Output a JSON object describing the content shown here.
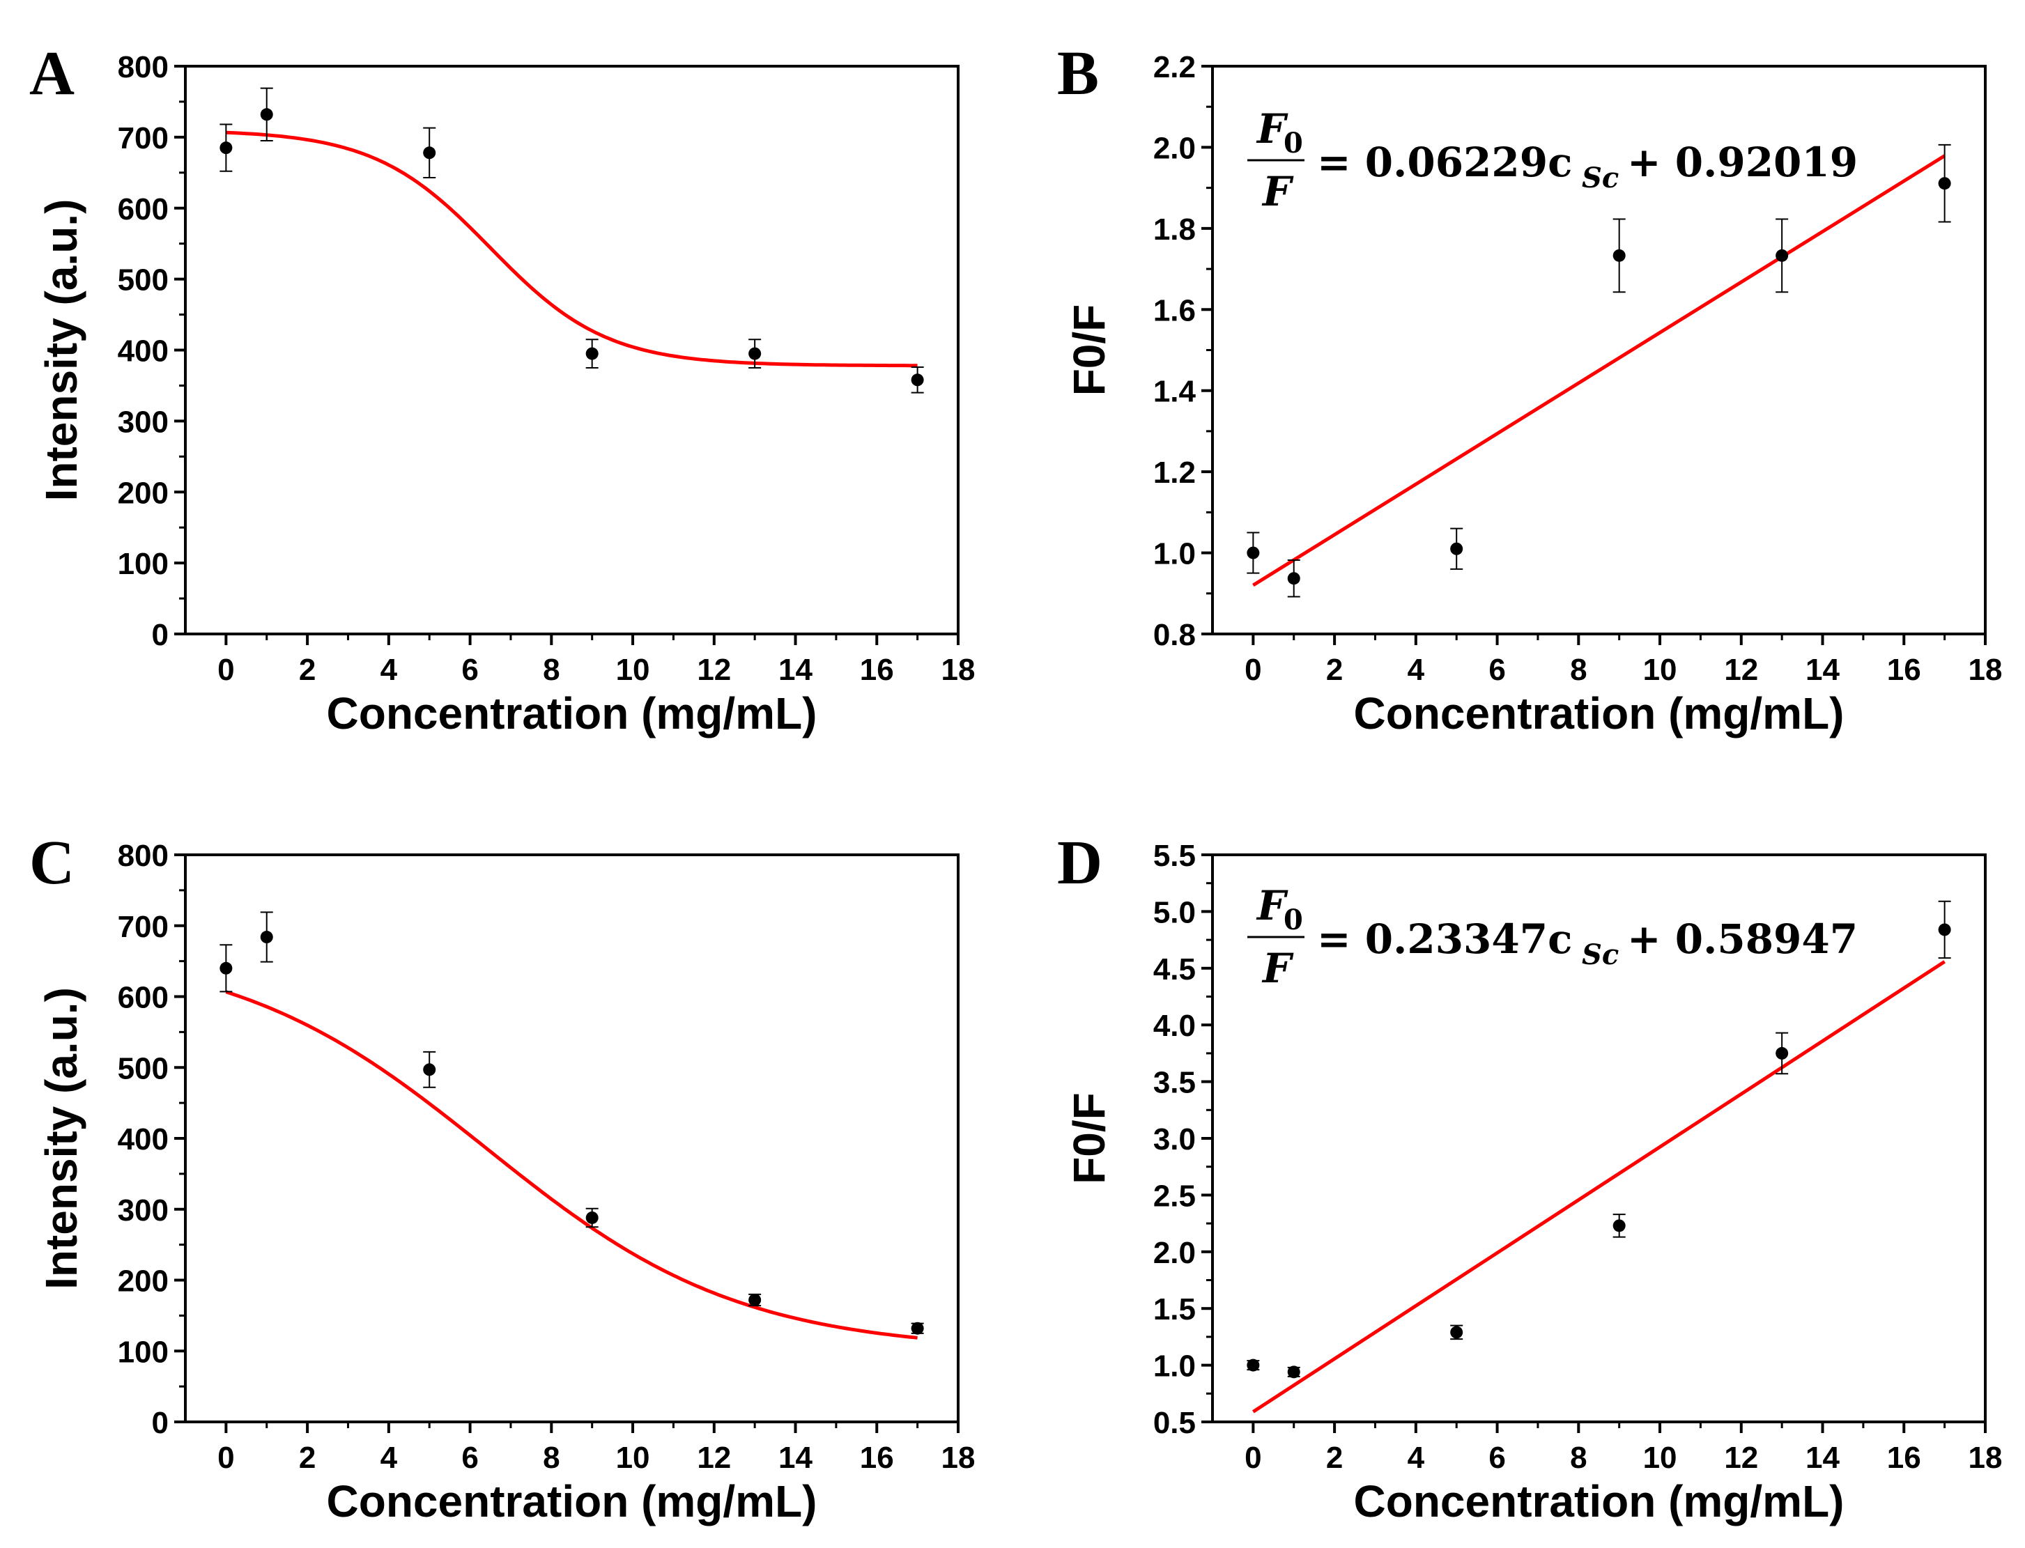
{
  "chart_data": [
    {
      "panel": "A",
      "type": "scatter",
      "xlabel": "Concentration (mg/mL)",
      "ylabel": "Intensity (a.u.)",
      "xlim": [
        -1,
        18
      ],
      "ylim": [
        0,
        800
      ],
      "xticks": [
        0,
        2,
        4,
        6,
        8,
        10,
        12,
        14,
        16,
        18
      ],
      "yticks": [
        0,
        100,
        200,
        300,
        400,
        500,
        600,
        700,
        800
      ],
      "x": [
        0,
        1,
        5,
        9,
        13,
        17
      ],
      "y": [
        685,
        732,
        678,
        395,
        395,
        358
      ],
      "yerr": [
        33,
        37,
        35,
        20,
        20,
        18
      ],
      "fit": {
        "kind": "sigmoid",
        "top": 710,
        "bottom": 378,
        "x0": 6.5,
        "k": 0.7,
        "color": "#ff0000"
      }
    },
    {
      "panel": "B",
      "type": "scatter",
      "xlabel": "Concentration (mg/mL)",
      "ylabel": "F0/F",
      "xlim": [
        -1,
        18
      ],
      "ylim": [
        0.8,
        2.2
      ],
      "xticks": [
        0,
        2,
        4,
        6,
        8,
        10,
        12,
        14,
        16,
        18
      ],
      "yticks": [
        "0.8",
        "1.0",
        "1.2",
        "1.4",
        "1.6",
        "1.8",
        "2.0",
        "2.2"
      ],
      "x": [
        0,
        1,
        5,
        9,
        13,
        17
      ],
      "y": [
        1.0,
        0.937,
        1.01,
        1.733,
        1.733,
        1.911
      ],
      "yerr": [
        0.05,
        0.045,
        0.05,
        0.09,
        0.09,
        0.095
      ],
      "fit": {
        "kind": "linear",
        "slope": 0.06229,
        "intercept": 0.92019,
        "color": "#ff0000"
      },
      "equation": {
        "lhs_numerator": "F",
        "lhs_numerator_sub": "0",
        "lhs_denominator": "F",
        "rhs_coef": "= 0.06229c",
        "rhs_sub": "Sc",
        "rhs_const": "+ 0.92019"
      }
    },
    {
      "panel": "C",
      "type": "scatter",
      "xlabel": "Concentration (mg/mL)",
      "ylabel": "Intensity (a.u.)",
      "xlim": [
        -1,
        18
      ],
      "ylim": [
        0,
        800
      ],
      "xticks": [
        0,
        2,
        4,
        6,
        8,
        10,
        12,
        14,
        16,
        18
      ],
      "yticks": [
        0,
        100,
        200,
        300,
        400,
        500,
        600,
        700,
        800
      ],
      "x": [
        0,
        1,
        5,
        9,
        13,
        17
      ],
      "y": [
        640,
        684,
        497,
        288,
        172,
        132
      ],
      "yerr": [
        33,
        35,
        25,
        13,
        8,
        7
      ],
      "fit": {
        "kind": "sigmoid",
        "top": 672,
        "bottom": 100,
        "x0": 6.4,
        "k": 0.32,
        "color": "#ff0000"
      }
    },
    {
      "panel": "D",
      "type": "scatter",
      "xlabel": "Concentration (mg/mL)",
      "ylabel": "F0/F",
      "xlim": [
        -1,
        18
      ],
      "ylim": [
        0.5,
        5.5
      ],
      "xticks": [
        0,
        2,
        4,
        6,
        8,
        10,
        12,
        14,
        16,
        18
      ],
      "yticks": [
        "0.5",
        "1.0",
        "1.5",
        "2.0",
        "2.5",
        "3.0",
        "3.5",
        "4.0",
        "4.5",
        "5.0",
        "5.5"
      ],
      "x": [
        0,
        1,
        5,
        9,
        13,
        17
      ],
      "y": [
        1.0,
        0.94,
        1.29,
        2.23,
        3.75,
        4.84
      ],
      "yerr": [
        0.04,
        0.04,
        0.06,
        0.1,
        0.18,
        0.25
      ],
      "fit": {
        "kind": "linear",
        "slope": 0.23347,
        "intercept": 0.58947,
        "color": "#ff0000"
      },
      "equation": {
        "lhs_numerator": "F",
        "lhs_numerator_sub": "0",
        "lhs_denominator": "F",
        "rhs_coef": "= 0.23347c",
        "rhs_sub": "Sc",
        "rhs_const": "+ 0.58947"
      }
    }
  ]
}
